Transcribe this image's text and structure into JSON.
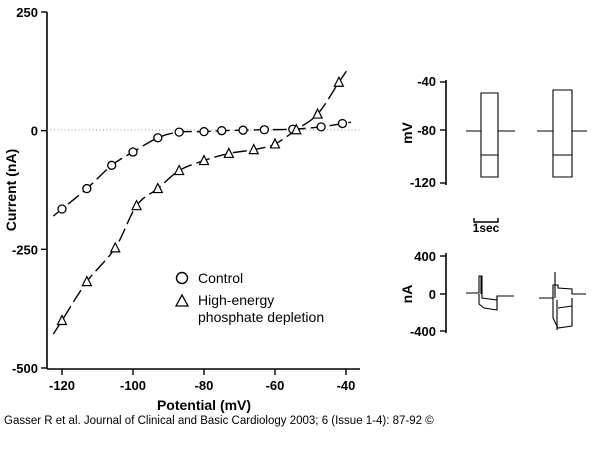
{
  "caption": "Gasser R et al. Journal of Clinical and Basic Cardiology 2003; 6 (Issue 1-4): 87-92 ©",
  "chart_data": [
    {
      "type": "line",
      "xlabel": "Potential (mV)",
      "ylabel": "Current (nA)",
      "xlim": [
        -122,
        -38
      ],
      "ylim": [
        -500,
        250
      ],
      "x_ticks": [
        -120,
        -100,
        -80,
        -60,
        -40
      ],
      "y_ticks": [
        250,
        0,
        -250,
        -500
      ],
      "x_tick_labels": [
        "-120",
        "-100",
        "-80",
        "-60",
        "-40"
      ],
      "y_tick_labels": [
        "250",
        "0",
        "-250",
        "-500"
      ],
      "legend_position": "center-right",
      "series": [
        {
          "name": "Control",
          "marker": "circle",
          "x": [
            -120,
            -113,
            -106,
            -100,
            -93,
            -87,
            -80,
            -75,
            -69,
            -63,
            -55,
            -47,
            -41
          ],
          "y": [
            -165,
            -122,
            -73,
            -45,
            -15,
            -3,
            -2,
            0,
            1,
            2,
            3,
            8,
            15
          ]
        },
        {
          "name": "High-energy phosphate depletion",
          "marker": "triangle",
          "x": [
            -120,
            -113,
            -105,
            -99,
            -93,
            -87,
            -80,
            -73,
            -66,
            -60,
            -54,
            -48,
            -42
          ],
          "y": [
            -400,
            -318,
            -247,
            -158,
            -122,
            -84,
            -63,
            -48,
            -40,
            -28,
            2,
            35,
            102
          ]
        }
      ],
      "zero_line": "dotted"
    },
    {
      "type": "line",
      "panel": "voltage protocol",
      "ylabel": "mV",
      "y_tick_labels": [
        "-40",
        "-80",
        "-120"
      ],
      "scale_bar": "1sec"
    },
    {
      "type": "line",
      "panel": "current traces",
      "ylabel": "nA",
      "y_tick_labels": [
        "400",
        "0",
        "-400"
      ]
    }
  ]
}
